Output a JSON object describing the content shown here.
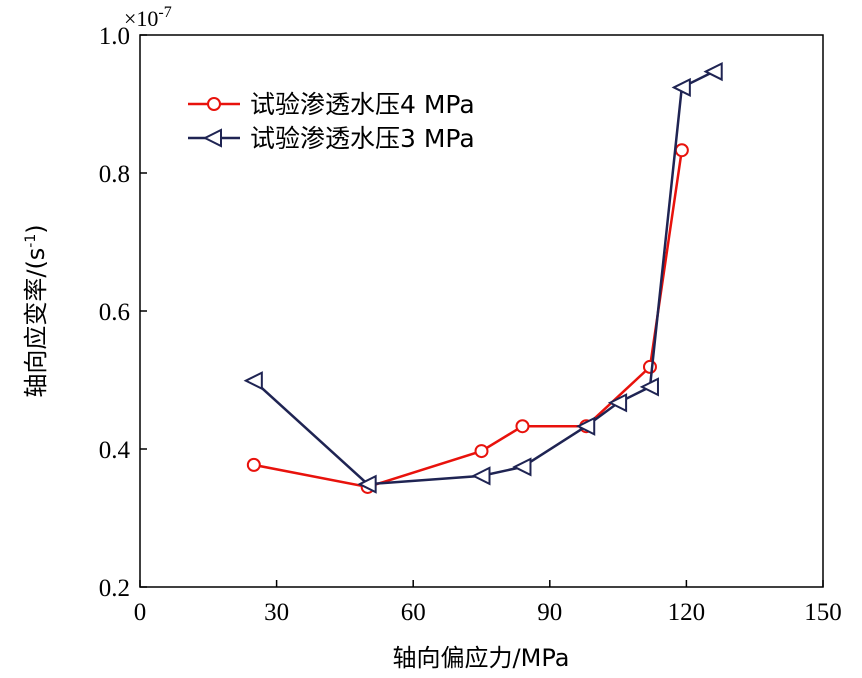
{
  "chart_data": {
    "type": "line",
    "xlabel": "轴向偏应力/MPa",
    "ylabel_main": "轴向应变率/(s",
    "ylabel_sup": "-1",
    "ylabel_end": ")",
    "y_multiplier_base": "×10",
    "y_multiplier_exp": "-7",
    "xlim": [
      0,
      150
    ],
    "ylim": [
      0.2,
      1.0
    ],
    "xticks": [
      "0",
      "30",
      "60",
      "90",
      "120",
      "150"
    ],
    "yticks": [
      "0.2",
      "0.4",
      "0.6",
      "0.8",
      "1.0"
    ],
    "grid": false,
    "legend_position": "top-left",
    "series": [
      {
        "name": "试验渗透水压4 MPa",
        "color": "#e8120c",
        "marker": "circle",
        "x": [
          25,
          50,
          75,
          84,
          98,
          112,
          119
        ],
        "y": [
          0.377,
          0.345,
          0.397,
          0.433,
          0.433,
          0.519,
          0.833
        ]
      },
      {
        "name": "试验渗透水压3 MPa",
        "color": "#1f2453",
        "marker": "triangle-left",
        "x": [
          25,
          50,
          75,
          84,
          98,
          105,
          112,
          119,
          126
        ],
        "y": [
          0.499,
          0.349,
          0.361,
          0.374,
          0.433,
          0.467,
          0.49,
          0.924,
          0.947
        ]
      }
    ]
  }
}
